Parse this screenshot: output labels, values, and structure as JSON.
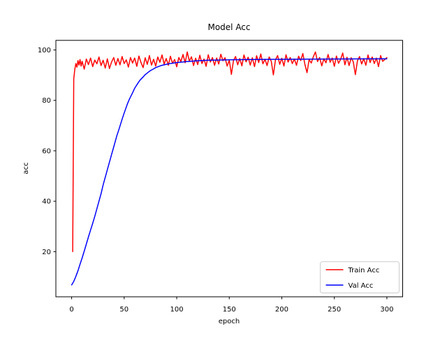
{
  "figure": {
    "background": "#ffffff",
    "spine_color": "#000000"
  },
  "legend": {
    "border_color": "#cccccc",
    "background": "#ffffff",
    "items": [
      {
        "label": "Train Acc",
        "color": "#ff0000"
      },
      {
        "label": "Val Acc",
        "color": "#0000ff"
      }
    ]
  },
  "chart_data": {
    "type": "line",
    "title": "Model Acc",
    "xlabel": "epoch",
    "ylabel": "acc",
    "xlim": [
      -15,
      315
    ],
    "ylim": [
      2.1,
      103.8
    ],
    "xticks": [
      0,
      50,
      100,
      150,
      200,
      250,
      300
    ],
    "yticks": [
      20,
      40,
      60,
      80,
      100
    ],
    "grid": false,
    "legend_position": "lower right",
    "series": [
      {
        "name": "Train Acc",
        "color": "#ff0000",
        "points": [
          [
            1,
            20
          ],
          [
            2,
            88.5
          ],
          [
            3,
            92.3
          ],
          [
            4,
            94.6
          ],
          [
            5,
            93.2
          ],
          [
            6,
            95.8
          ],
          [
            7,
            94.0
          ],
          [
            8,
            96.2
          ],
          [
            9,
            93.6
          ],
          [
            10,
            95.5
          ],
          [
            12,
            92.4
          ],
          [
            14,
            96.4
          ],
          [
            16,
            94.2
          ],
          [
            18,
            96.8
          ],
          [
            20,
            93.4
          ],
          [
            22,
            96.0
          ],
          [
            24,
            94.5
          ],
          [
            26,
            97.2
          ],
          [
            28,
            93.8
          ],
          [
            30,
            95.9
          ],
          [
            32,
            92.8
          ],
          [
            34,
            96.5
          ],
          [
            36,
            92.6
          ],
          [
            38,
            95.2
          ],
          [
            40,
            97.0
          ],
          [
            42,
            93.9
          ],
          [
            44,
            96.6
          ],
          [
            46,
            94.1
          ],
          [
            48,
            97.4
          ],
          [
            50,
            94.6
          ],
          [
            52,
            96.1
          ],
          [
            54,
            93.2
          ],
          [
            56,
            97.0
          ],
          [
            58,
            94.8
          ],
          [
            60,
            96.8
          ],
          [
            62,
            93.5
          ],
          [
            64,
            97.6
          ],
          [
            66,
            95.0
          ],
          [
            68,
            93.0
          ],
          [
            70,
            96.9
          ],
          [
            72,
            94.3
          ],
          [
            74,
            97.8
          ],
          [
            76,
            94.0
          ],
          [
            78,
            96.3
          ],
          [
            80,
            93.6
          ],
          [
            82,
            97.2
          ],
          [
            84,
            95.1
          ],
          [
            86,
            98.0
          ],
          [
            88,
            94.4
          ],
          [
            90,
            96.6
          ],
          [
            92,
            93.9
          ],
          [
            94,
            97.5
          ],
          [
            96,
            94.7
          ],
          [
            98,
            96.2
          ],
          [
            100,
            93.3
          ],
          [
            102,
            97.0
          ],
          [
            104,
            95.4
          ],
          [
            106,
            98.2
          ],
          [
            108,
            94.9
          ],
          [
            110,
            99.2
          ],
          [
            112,
            95.6
          ],
          [
            114,
            97.3
          ],
          [
            116,
            93.8
          ],
          [
            118,
            96.7
          ],
          [
            120,
            94.2
          ],
          [
            122,
            97.9
          ],
          [
            124,
            94.6
          ],
          [
            126,
            96.4
          ],
          [
            128,
            93.5
          ],
          [
            130,
            98.1
          ],
          [
            132,
            95.2
          ],
          [
            134,
            97.0
          ],
          [
            136,
            93.9
          ],
          [
            138,
            96.8
          ],
          [
            140,
            94.4
          ],
          [
            142,
            98.3
          ],
          [
            144,
            95.7
          ],
          [
            146,
            96.9
          ],
          [
            148,
            93.6
          ],
          [
            150,
            95.9
          ],
          [
            152,
            90.3
          ],
          [
            154,
            95.8
          ],
          [
            156,
            97.4
          ],
          [
            158,
            94.1
          ],
          [
            160,
            96.6
          ],
          [
            162,
            93.7
          ],
          [
            164,
            98.0
          ],
          [
            166,
            95.3
          ],
          [
            168,
            97.1
          ],
          [
            170,
            94.0
          ],
          [
            172,
            96.9
          ],
          [
            174,
            93.4
          ],
          [
            176,
            97.7
          ],
          [
            178,
            95.0
          ],
          [
            180,
            98.4
          ],
          [
            182,
            94.5
          ],
          [
            184,
            96.3
          ],
          [
            186,
            93.8
          ],
          [
            188,
            97.2
          ],
          [
            190,
            95.5
          ],
          [
            192,
            90.1
          ],
          [
            194,
            96.1
          ],
          [
            196,
            97.8
          ],
          [
            198,
            94.3
          ],
          [
            200,
            96.7
          ],
          [
            202,
            93.6
          ],
          [
            204,
            98.1
          ],
          [
            206,
            95.2
          ],
          [
            208,
            97.0
          ],
          [
            210,
            94.6
          ],
          [
            212,
            96.4
          ],
          [
            214,
            93.9
          ],
          [
            216,
            97.5
          ],
          [
            218,
            95.8
          ],
          [
            220,
            98.6
          ],
          [
            222,
            94.2
          ],
          [
            224,
            91.0
          ],
          [
            226,
            96.2
          ],
          [
            228,
            94.8
          ],
          [
            230,
            97.3
          ],
          [
            232,
            99.2
          ],
          [
            234,
            95.4
          ],
          [
            236,
            97.0
          ],
          [
            238,
            93.7
          ],
          [
            240,
            96.5
          ],
          [
            242,
            94.9
          ],
          [
            244,
            98.2
          ],
          [
            246,
            95.1
          ],
          [
            248,
            96.8
          ],
          [
            250,
            93.5
          ],
          [
            252,
            97.6
          ],
          [
            254,
            94.7
          ],
          [
            256,
            96.3
          ],
          [
            258,
            98.8
          ],
          [
            260,
            94.1
          ],
          [
            262,
            97.1
          ],
          [
            264,
            93.8
          ],
          [
            266,
            96.9
          ],
          [
            268,
            95.3
          ],
          [
            270,
            90.2
          ],
          [
            272,
            95.7
          ],
          [
            274,
            97.4
          ],
          [
            276,
            94.4
          ],
          [
            278,
            96.6
          ],
          [
            280,
            93.9
          ],
          [
            282,
            98.0
          ],
          [
            284,
            95.0
          ],
          [
            286,
            97.2
          ],
          [
            288,
            94.6
          ],
          [
            290,
            96.8
          ],
          [
            292,
            93.4
          ],
          [
            294,
            97.8
          ],
          [
            296,
            95.5
          ],
          [
            298,
            96.2
          ],
          [
            300,
            97.0
          ]
        ]
      },
      {
        "name": "Val Acc",
        "color": "#0000ff",
        "points": [
          [
            0,
            6.8
          ],
          [
            2,
            8.2
          ],
          [
            4,
            10.2
          ],
          [
            6,
            12.4
          ],
          [
            8,
            15.0
          ],
          [
            10,
            17.5
          ],
          [
            12,
            20.2
          ],
          [
            14,
            23.0
          ],
          [
            16,
            25.8
          ],
          [
            18,
            28.6
          ],
          [
            20,
            31.2
          ],
          [
            22,
            34.0
          ],
          [
            25,
            38.5
          ],
          [
            28,
            43.0
          ],
          [
            30,
            46.5
          ],
          [
            33,
            51.0
          ],
          [
            35,
            54.0
          ],
          [
            38,
            58.5
          ],
          [
            40,
            61.5
          ],
          [
            43,
            66.0
          ],
          [
            45,
            68.5
          ],
          [
            48,
            72.5
          ],
          [
            50,
            75.0
          ],
          [
            53,
            78.5
          ],
          [
            55,
            80.5
          ],
          [
            58,
            83.0
          ],
          [
            60,
            84.8
          ],
          [
            63,
            86.8
          ],
          [
            65,
            88.0
          ],
          [
            68,
            89.3
          ],
          [
            70,
            90.2
          ],
          [
            73,
            91.2
          ],
          [
            75,
            91.8
          ],
          [
            78,
            92.5
          ],
          [
            80,
            93.0
          ],
          [
            85,
            93.8
          ],
          [
            90,
            94.3
          ],
          [
            95,
            94.7
          ],
          [
            100,
            95.0
          ],
          [
            110,
            95.4
          ],
          [
            120,
            95.7
          ],
          [
            130,
            95.9
          ],
          [
            140,
            96.0
          ],
          [
            150,
            96.1
          ],
          [
            170,
            96.2
          ],
          [
            200,
            96.3
          ],
          [
            250,
            96.4
          ],
          [
            300,
            96.5
          ]
        ]
      }
    ]
  }
}
